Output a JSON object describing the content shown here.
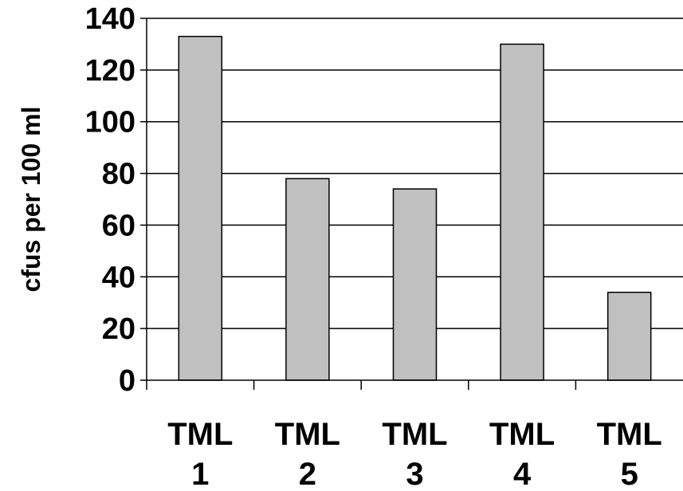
{
  "chart_data": {
    "type": "bar",
    "categories": [
      [
        "TML",
        "1"
      ],
      [
        "TML",
        "2"
      ],
      [
        "TML",
        "3"
      ],
      [
        "TML",
        "4"
      ],
      [
        "TML",
        "5"
      ]
    ],
    "values": [
      133,
      78,
      74,
      130,
      34
    ],
    "title": "",
    "xlabel": "",
    "ylabel": "cfus per 100 ml",
    "ylim": [
      0,
      140
    ],
    "yticks": [
      "0",
      "20",
      "40",
      "60",
      "80",
      "100",
      "120",
      "140"
    ],
    "grid": true,
    "legend": "none",
    "colors": {
      "bar_fill": "#c0c0c0",
      "bar_stroke": "#000000",
      "grid": "#000000",
      "axis": "#000000"
    }
  }
}
